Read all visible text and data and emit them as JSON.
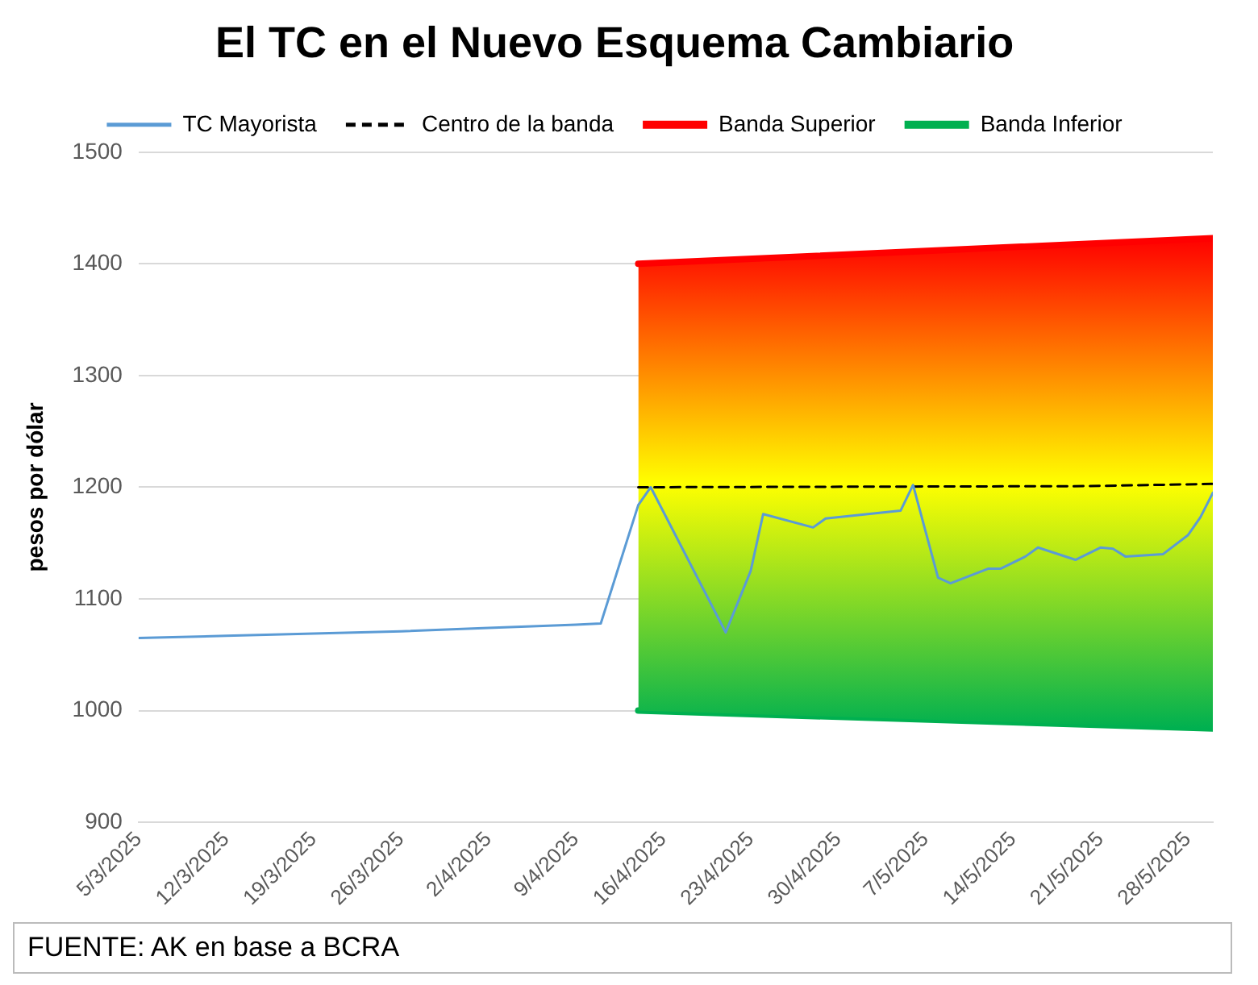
{
  "chart_data": {
    "type": "line",
    "title": "El TC en el Nuevo Esquema Cambiario",
    "ylabel": "pesos por dólar",
    "xlim": [
      "2025-03-05",
      "2025-05-30"
    ],
    "xticks": [
      {
        "value": "2025-03-05",
        "label": "5/3/2025"
      },
      {
        "value": "2025-03-12",
        "label": "12/3/2025"
      },
      {
        "value": "2025-03-19",
        "label": "19/3/2025"
      },
      {
        "value": "2025-03-26",
        "label": "26/3/2025"
      },
      {
        "value": "2025-04-02",
        "label": "2/4/2025"
      },
      {
        "value": "2025-04-09",
        "label": "9/4/2025"
      },
      {
        "value": "2025-04-16",
        "label": "16/4/2025"
      },
      {
        "value": "2025-04-23",
        "label": "23/4/2025"
      },
      {
        "value": "2025-04-30",
        "label": "30/4/2025"
      },
      {
        "value": "2025-05-07",
        "label": "7/5/2025"
      },
      {
        "value": "2025-05-14",
        "label": "14/5/2025"
      },
      {
        "value": "2025-05-21",
        "label": "21/5/2025"
      },
      {
        "value": "2025-05-28",
        "label": "28/5/2025"
      }
    ],
    "ylim": [
      900,
      1500
    ],
    "yticks": [
      900,
      1000,
      1100,
      1200,
      1300,
      1400,
      1500
    ],
    "grid": "y",
    "legend": "top",
    "marker": "none",
    "series": [
      {
        "name": "TC Mayorista",
        "color": "#5b9bd5",
        "x": [
          "2025-03-05",
          "2025-03-12",
          "2025-03-19",
          "2025-03-26",
          "2025-04-02",
          "2025-04-09",
          "2025-04-11",
          "2025-04-14",
          "2025-04-15",
          "2025-04-21",
          "2025-04-23",
          "2025-04-24",
          "2025-04-28",
          "2025-04-29",
          "2025-05-05",
          "2025-05-06",
          "2025-05-08",
          "2025-05-09",
          "2025-05-12",
          "2025-05-13",
          "2025-05-15",
          "2025-05-16",
          "2025-05-19",
          "2025-05-21",
          "2025-05-22",
          "2025-05-23",
          "2025-05-26",
          "2025-05-28",
          "2025-05-29",
          "2025-05-30"
        ],
        "values": [
          1065,
          1067,
          1069,
          1071,
          1074,
          1077,
          1078,
          1184,
          1200,
          1070,
          1125,
          1176,
          1164,
          1172,
          1179,
          1202,
          1119,
          1114,
          1127,
          1127,
          1138,
          1146,
          1135,
          1146,
          1145,
          1138,
          1140,
          1157,
          1173,
          1195
        ]
      },
      {
        "name": "Centro de la banda",
        "color": "#000000",
        "line_style": "dashed",
        "x": [
          "2025-04-14",
          "2025-05-20",
          "2025-05-30"
        ],
        "values": [
          1200,
          1201,
          1203
        ]
      },
      {
        "name": "Banda Superior",
        "color": "#ff0000",
        "type": "area",
        "x": [
          "2025-04-14",
          "2025-05-30"
        ],
        "values": [
          1400,
          1423
        ]
      },
      {
        "name": "Banda Inferior",
        "color": "#00b050",
        "x": [
          "2025-04-14",
          "2025-05-30"
        ],
        "values": [
          1000,
          984
        ]
      }
    ],
    "annotations": [
      "FUENTE: AK en base a BCRA"
    ]
  }
}
